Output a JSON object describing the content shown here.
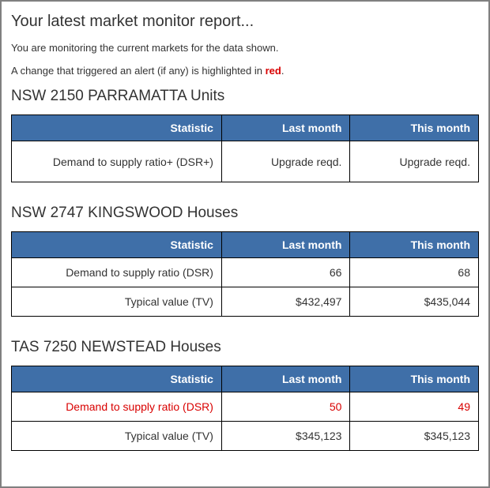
{
  "title": "Your latest market monitor report...",
  "intro1": "You are monitoring the current markets for the data shown.",
  "intro2_pre": "A change that triggered an alert (if any) is highlighted in ",
  "intro2_red": "red",
  "intro2_post": ".",
  "columns": {
    "stat": "Statistic",
    "last": "Last month",
    "this": "This month"
  },
  "sections": [
    {
      "heading": "NSW  2150  PARRAMATTA  Units",
      "tall": true,
      "rows": [
        {
          "stat": "Demand to supply ratio+ (DSR+)",
          "last": "Upgrade reqd.",
          "this": "Upgrade reqd.",
          "alert": false
        }
      ]
    },
    {
      "heading": "NSW  2747  KINGSWOOD  Houses",
      "tall": false,
      "rows": [
        {
          "stat": "Demand to supply ratio (DSR)",
          "last": "66",
          "this": "68",
          "alert": false
        },
        {
          "stat": "Typical value (TV)",
          "last": "$432,497",
          "this": "$435,044",
          "alert": false
        }
      ]
    },
    {
      "heading": "TAS  7250  NEWSTEAD  Houses",
      "tall": false,
      "rows": [
        {
          "stat": "Demand to supply ratio (DSR)",
          "last": "50",
          "this": "49",
          "alert": true
        },
        {
          "stat": "Typical value (TV)",
          "last": "$345,123",
          "this": "$345,123",
          "alert": false
        }
      ]
    }
  ]
}
